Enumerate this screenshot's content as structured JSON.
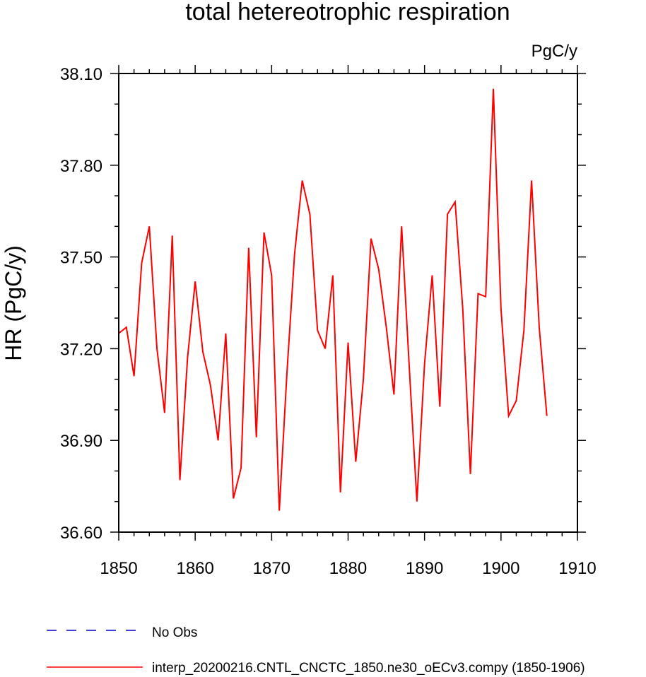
{
  "chart_data": {
    "type": "line",
    "title": "total hetereotrophic respiration",
    "units": "PgC/y",
    "ylabel": "HR  (PgC/y)",
    "xlabel": "",
    "xlim": [
      1850,
      1910
    ],
    "ylim": [
      36.6,
      38.1
    ],
    "xticks": [
      1850,
      1860,
      1870,
      1880,
      1890,
      1900,
      1910
    ],
    "xtick_labels": [
      "1850",
      "1860",
      "1870",
      "1880",
      "1890",
      "1900",
      "1910"
    ],
    "yticks": [
      36.6,
      36.9,
      37.2,
      37.5,
      37.8,
      38.1
    ],
    "ytick_labels": [
      "36.60",
      "36.90",
      "37.20",
      "37.50",
      "37.80",
      "38.10"
    ],
    "grid": false,
    "legend_position": "bottom-left",
    "series": [
      {
        "name": "interp_20200216.CNTL_CNCTC_1850.ne30_oECv3.compy (1850-1906)",
        "color": "#ff0000",
        "style": "solid",
        "x": [
          1850,
          1851,
          1852,
          1853,
          1854,
          1855,
          1856,
          1857,
          1858,
          1859,
          1860,
          1861,
          1862,
          1863,
          1864,
          1865,
          1866,
          1867,
          1868,
          1869,
          1870,
          1871,
          1872,
          1873,
          1874,
          1875,
          1876,
          1877,
          1878,
          1879,
          1880,
          1881,
          1882,
          1883,
          1884,
          1885,
          1886,
          1887,
          1888,
          1889,
          1890,
          1891,
          1892,
          1893,
          1894,
          1895,
          1896,
          1897,
          1898,
          1899,
          1900,
          1901,
          1902,
          1903,
          1904,
          1905,
          1906
        ],
        "y": [
          37.25,
          37.27,
          37.11,
          37.48,
          37.6,
          37.2,
          36.99,
          37.57,
          36.77,
          37.17,
          37.42,
          37.19,
          37.08,
          36.9,
          37.25,
          36.71,
          36.81,
          37.53,
          36.91,
          37.58,
          37.44,
          36.67,
          37.12,
          37.51,
          37.75,
          37.64,
          37.26,
          37.2,
          37.44,
          36.73,
          37.22,
          36.83,
          37.1,
          37.56,
          37.46,
          37.27,
          37.05,
          37.6,
          37.14,
          36.7,
          37.15,
          37.44,
          37.01,
          37.64,
          37.68,
          37.33,
          36.79,
          37.38,
          37.37,
          38.05,
          37.33,
          36.98,
          37.03,
          37.26,
          37.75,
          37.27,
          36.98
        ]
      },
      {
        "name": "No Obs",
        "color": "#0000cc",
        "style": "dashed",
        "x": [],
        "y": []
      }
    ]
  }
}
